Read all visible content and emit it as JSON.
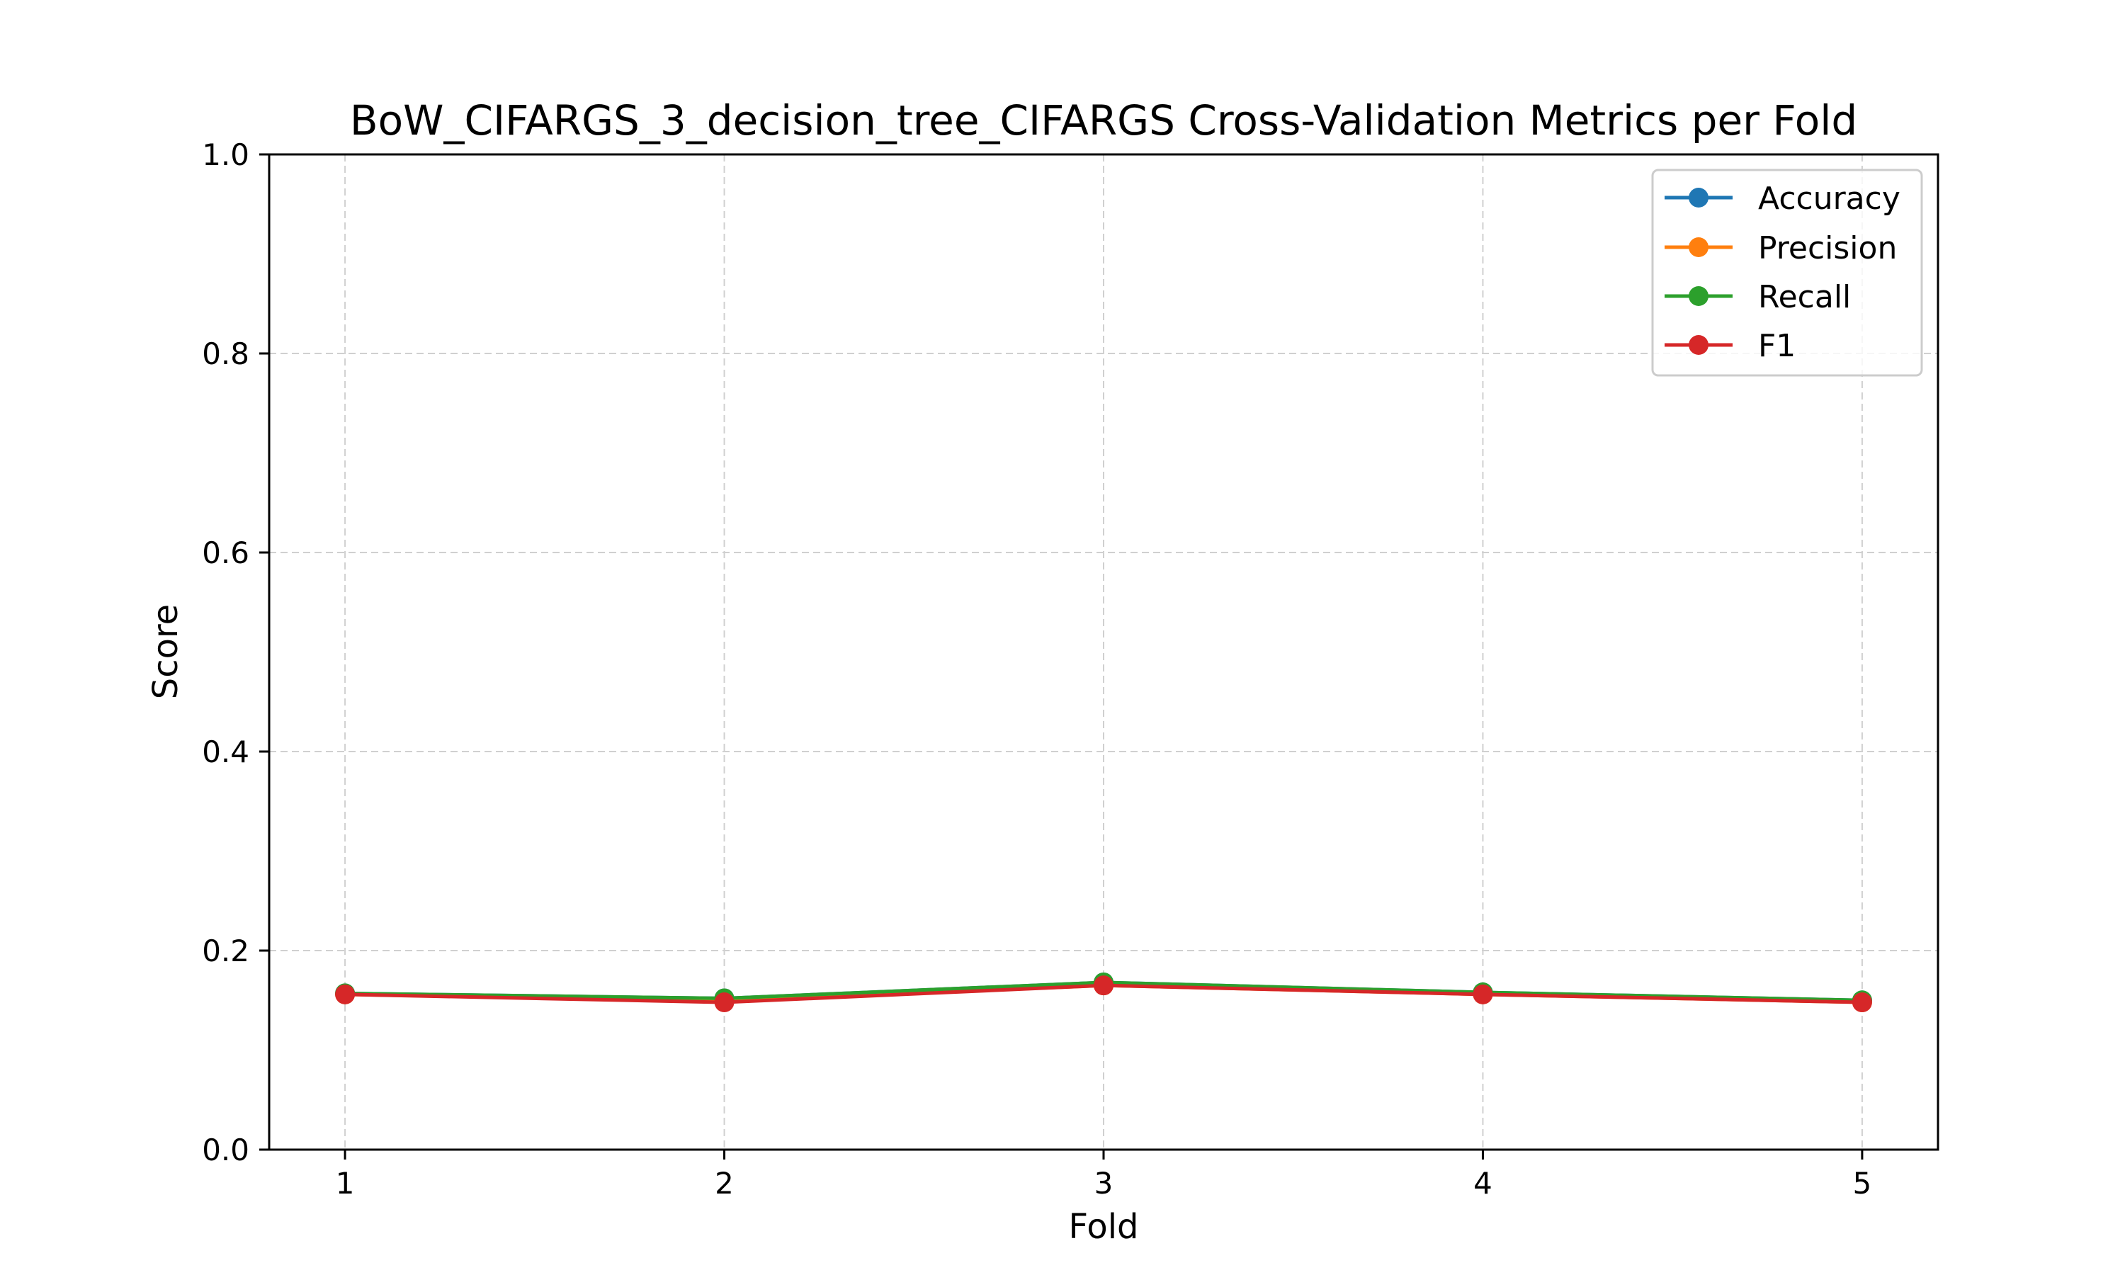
{
  "chart_data": {
    "type": "line",
    "title": "BoW_CIFARGS_3_decision_tree_CIFARGS Cross-Validation Metrics per Fold",
    "xlabel": "Fold",
    "ylabel": "Score",
    "x": [
      1,
      2,
      3,
      4,
      5
    ],
    "xlim": [
      0.8,
      5.2
    ],
    "ylim": [
      0.0,
      1.0
    ],
    "x_ticks": [
      "1",
      "2",
      "3",
      "4",
      "5"
    ],
    "y_ticks": [
      "0.0",
      "0.2",
      "0.4",
      "0.6",
      "0.8",
      "1.0"
    ],
    "grid": true,
    "legend_position": "top-right",
    "series": [
      {
        "name": "Accuracy",
        "color": "#1f77b4",
        "values": [
          0.157,
          0.152,
          0.168,
          0.158,
          0.15
        ]
      },
      {
        "name": "Precision",
        "color": "#ff7f0e",
        "values": [
          0.156,
          0.149,
          0.165,
          0.156,
          0.148
        ]
      },
      {
        "name": "Recall",
        "color": "#2ca02c",
        "values": [
          0.157,
          0.152,
          0.168,
          0.158,
          0.15
        ]
      },
      {
        "name": "F1",
        "color": "#d62728",
        "values": [
          0.156,
          0.148,
          0.165,
          0.156,
          0.148
        ]
      }
    ]
  }
}
